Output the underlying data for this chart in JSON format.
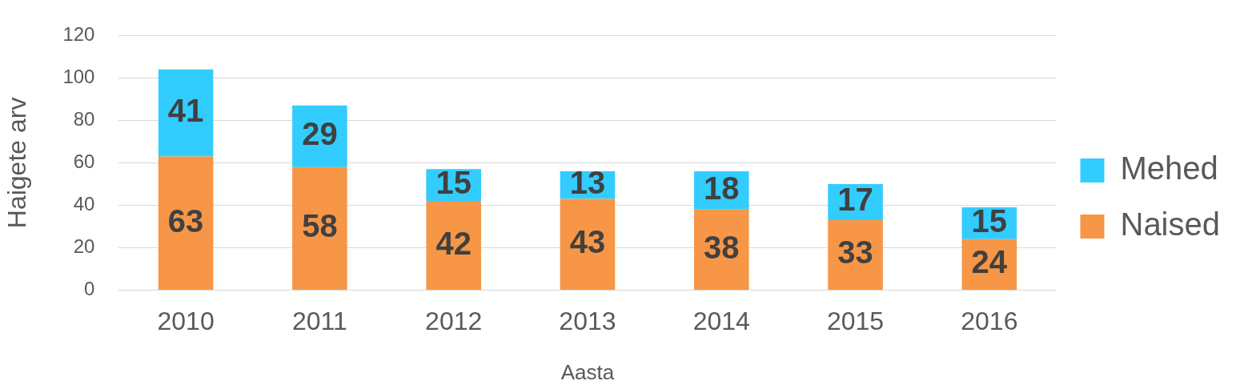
{
  "chart_data": {
    "type": "bar",
    "stacked": true,
    "xlabel": "Aasta",
    "ylabel": "Haigete arv",
    "categories": [
      "2010",
      "2011",
      "2012",
      "2013",
      "2014",
      "2015",
      "2016"
    ],
    "series": [
      {
        "name": "Naised",
        "color": "#f79646",
        "values": [
          63,
          58,
          42,
          43,
          38,
          33,
          24
        ]
      },
      {
        "name": "Mehed",
        "color": "#33ccff",
        "values": [
          41,
          29,
          15,
          13,
          18,
          17,
          15
        ]
      }
    ],
    "ylim": [
      0,
      120
    ],
    "yticks": [
      0,
      20,
      40,
      60,
      80,
      100,
      120
    ],
    "grid": "y",
    "legend": "right",
    "data_labels": true
  }
}
